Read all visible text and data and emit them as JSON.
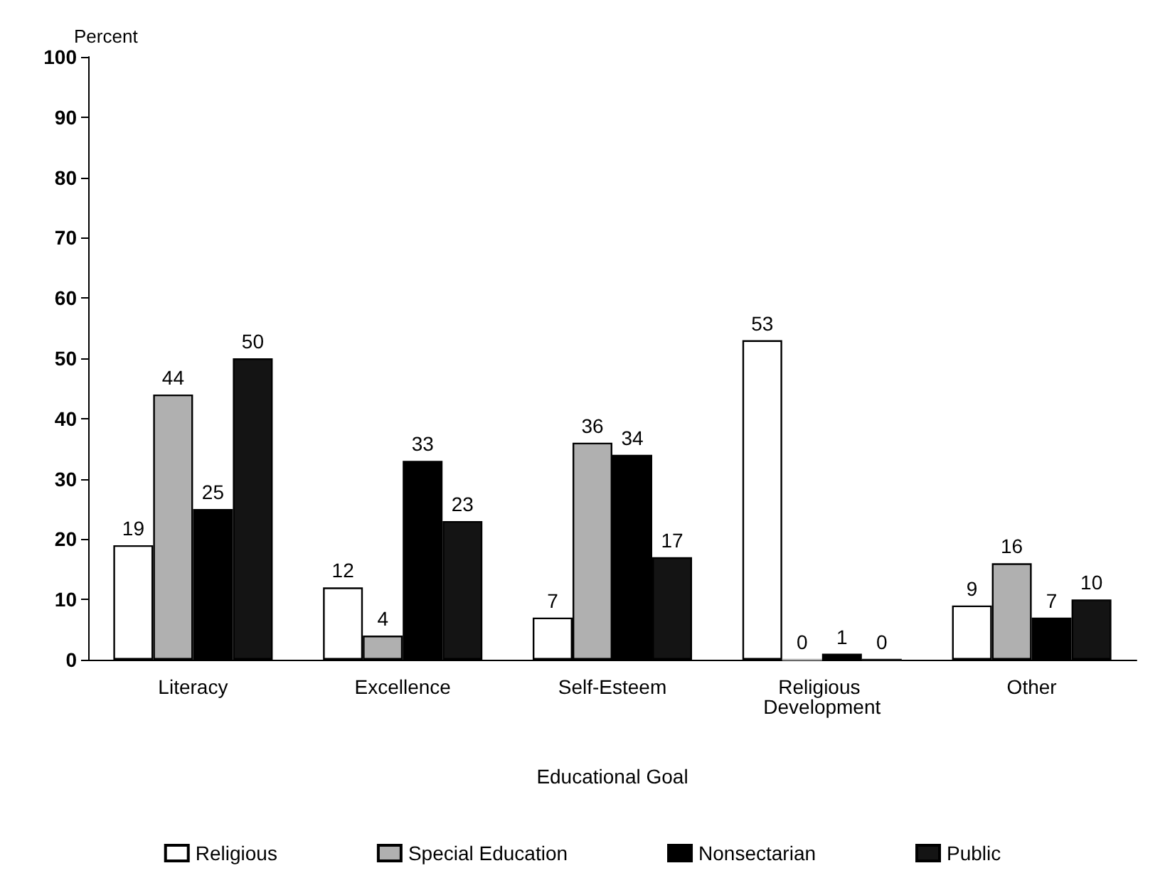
{
  "chart_data": {
    "type": "bar",
    "ylabel": "Percent",
    "xlabel": "Educational Goal",
    "categories": [
      "Literacy",
      "Excellence",
      "Self-Esteem",
      "Religious Development",
      "Other"
    ],
    "series": [
      {
        "name": "Religious",
        "color": "#ffffff",
        "values": [
          19,
          12,
          7,
          53,
          9
        ]
      },
      {
        "name": "Special Education",
        "color": "#b0b0b0",
        "values": [
          44,
          4,
          36,
          0,
          16
        ]
      },
      {
        "name": "Nonsectarian",
        "color": "#000000",
        "values": [
          25,
          33,
          34,
          1,
          7
        ]
      },
      {
        "name": "Public",
        "color": "#141414",
        "values": [
          50,
          23,
          17,
          0,
          10
        ]
      }
    ],
    "ylim": [
      0,
      100
    ],
    "yticks": [
      0,
      10,
      20,
      30,
      40,
      50,
      60,
      70,
      80,
      90,
      100
    ],
    "data_labels": true,
    "legend": "bottom",
    "grid": false
  }
}
